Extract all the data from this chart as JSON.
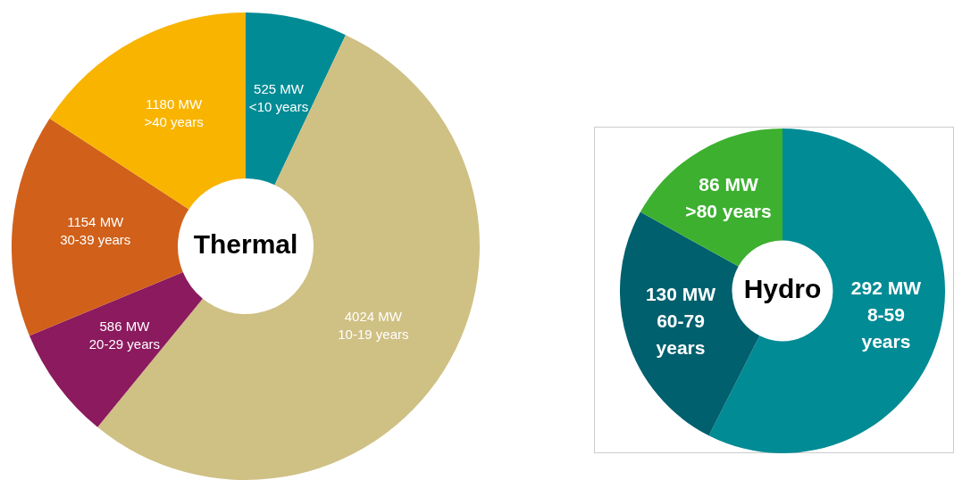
{
  "chart_data": [
    {
      "type": "donut",
      "title": "Thermal",
      "categories": [
        "<10 years",
        "10-19 years",
        "20-29 years",
        "30-39 years",
        ">40 years"
      ],
      "values": [
        525,
        4024,
        586,
        1154,
        1180
      ],
      "value_labels": [
        "525 MW",
        "4024 MW",
        "586 MW",
        "1154 MW",
        "1180 MW"
      ],
      "colors": [
        "#008b95",
        "#cfc084",
        "#8b1a5e",
        "#d0601a",
        "#f9b400"
      ]
    },
    {
      "type": "donut",
      "title": "Hydro",
      "categories": [
        "8-59 years",
        "60-79 years",
        ">80 years"
      ],
      "values": [
        292,
        130,
        86
      ],
      "value_labels": [
        "292 MW",
        "130 MW",
        "86 MW"
      ],
      "colors": [
        "#008b95",
        "#00606e",
        "#3db030"
      ]
    }
  ]
}
